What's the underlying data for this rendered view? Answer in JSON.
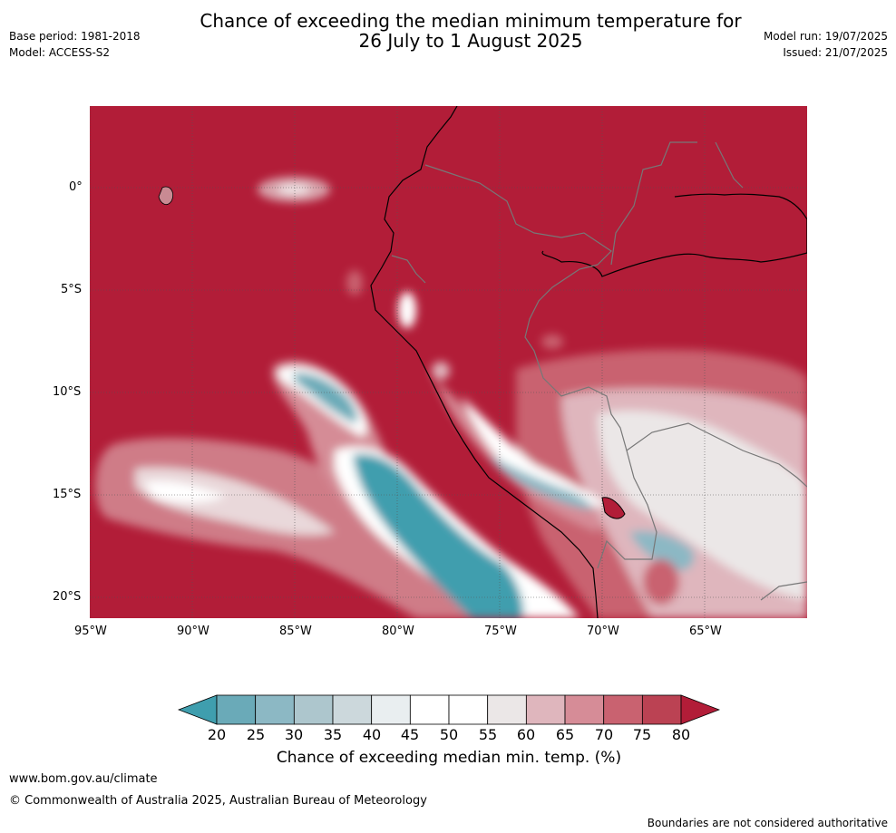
{
  "header": {
    "title_line1": "Chance of exceeding the median minimum temperature for",
    "title_line2": "26 July to 1 August 2025",
    "base_period": "Base period: 1981-2018",
    "model": "Model: ACCESS-S2",
    "model_run": "Model run: 19/07/2025",
    "issued": "Issued: 21/07/2025"
  },
  "map": {
    "lat_labels": [
      "0°",
      "5°S",
      "10°S",
      "15°S",
      "20°S"
    ],
    "lon_labels": [
      "95°W",
      "90°W",
      "85°W",
      "80°W",
      "75°W",
      "70°W",
      "65°W"
    ],
    "background_color": "#b21d38"
  },
  "colorbar": {
    "ticks": [
      "20",
      "25",
      "30",
      "35",
      "40",
      "45",
      "50",
      "55",
      "60",
      "65",
      "70",
      "75",
      "80"
    ],
    "colors": [
      "#3f9eae",
      "#6aaab8",
      "#8cb8c4",
      "#adc6cd",
      "#ccd8dc",
      "#e9eef0",
      "#ffffff",
      "#ffffff",
      "#ebe7e7",
      "#dfb6bd",
      "#d68c97",
      "#c96270",
      "#bb4253",
      "#b21d38"
    ],
    "title": "Chance of exceeding median min. temp. (%)"
  },
  "footer": {
    "website": "www.bom.gov.au/climate",
    "copyright": "© Commonwealth of Australia 2025, Australian Bureau of Meteorology",
    "disclaimer": "Boundaries are not considered authoritative"
  }
}
